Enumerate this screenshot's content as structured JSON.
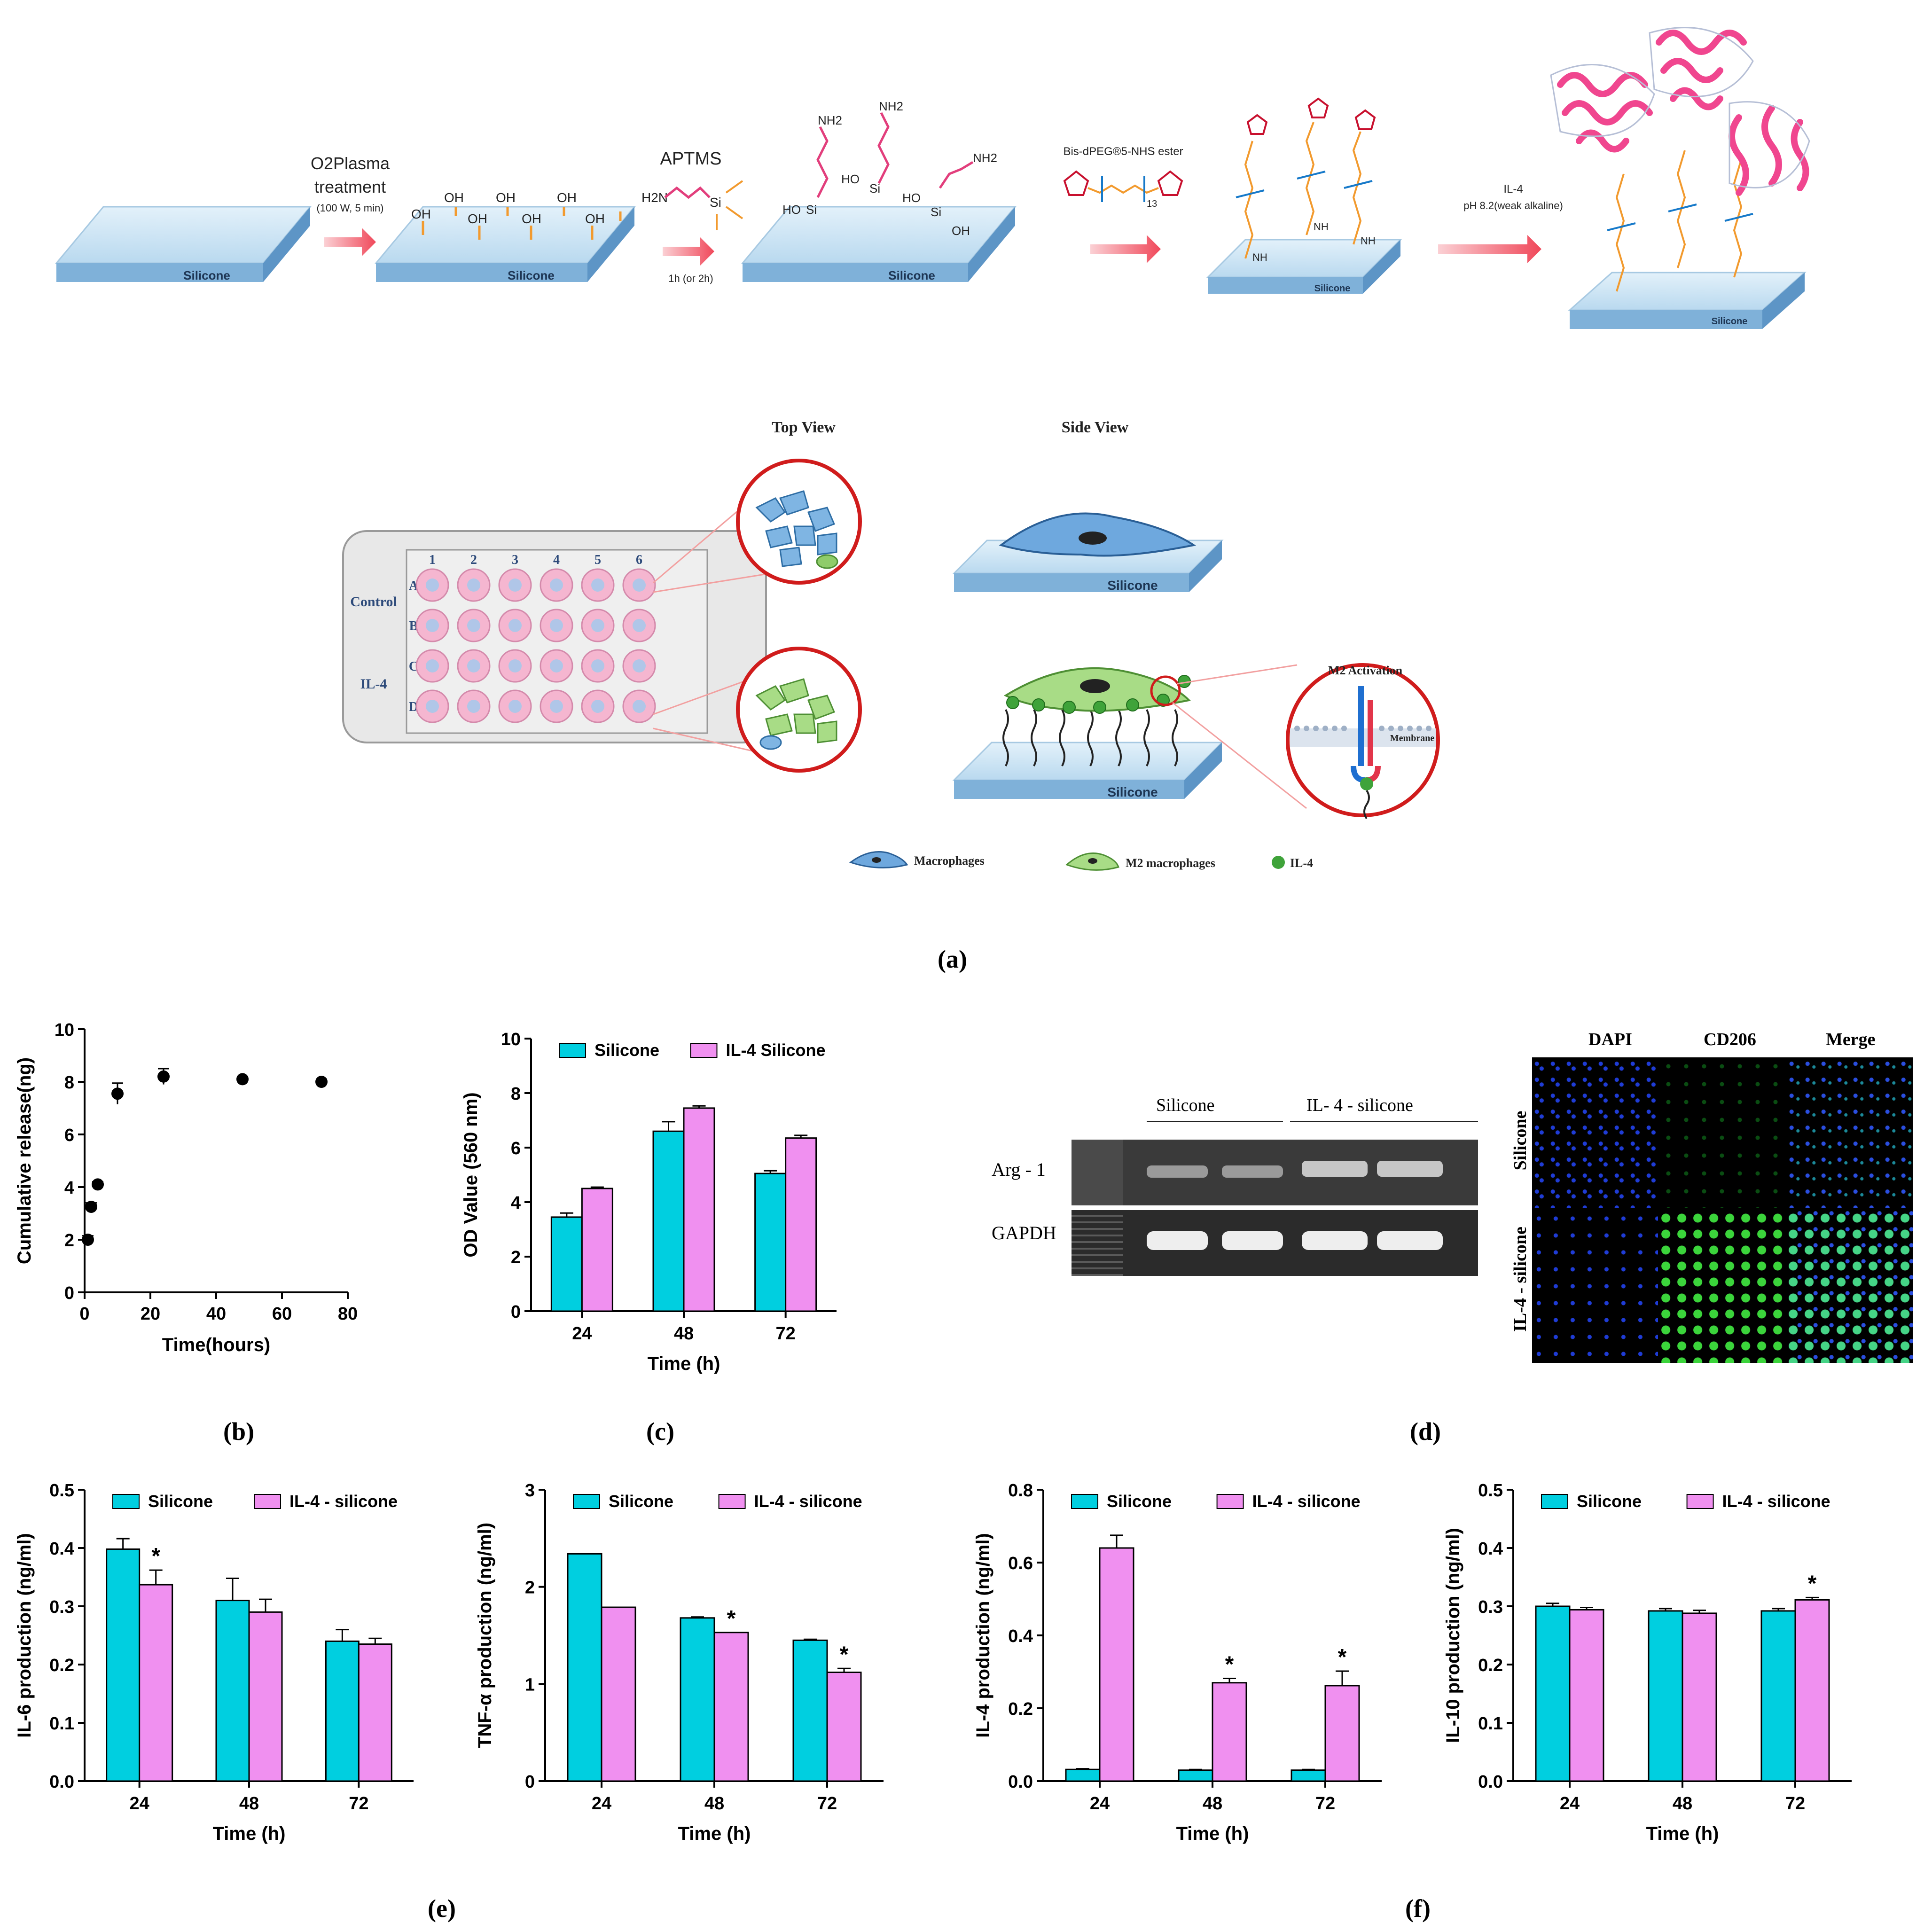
{
  "scheme": {
    "slab1_label": "Silicone",
    "step1": {
      "title_line1": "O2Plasma",
      "title_line2": "treatment",
      "detail": "(100 W, 5 min)"
    },
    "slab2_label": "Silicone",
    "oh_labels": [
      "OH",
      "OH",
      "OH",
      "OH",
      "OH",
      "OH",
      "OH",
      "OH"
    ],
    "step2": {
      "title": "APTMS",
      "detail": "1h (or 2h)"
    },
    "aptms_molecule": {
      "amine": "H2N",
      "si": "Si"
    },
    "slab3_label": "Silicone",
    "amine_labels": [
      "NH2",
      "NH2",
      "NH2"
    ],
    "si_labels": [
      "Si",
      "Si",
      "Si"
    ],
    "ho_labels": [
      "HO",
      "HO",
      "HO",
      "OH"
    ],
    "step3": {
      "title": "Bis-dPEG®5-NHS ester",
      "repeat": "13"
    },
    "slab4_label": "Silicone",
    "nh_labels": [
      "NH",
      "NH",
      "NH"
    ],
    "step4": {
      "title": "IL-4",
      "detail": "pH 8.2(weak alkaline)"
    },
    "slab5_label": "Silicone"
  },
  "schematic": {
    "top_view_label": "Top View",
    "side_view_label": "Side View",
    "plate": {
      "columns": [
        "1",
        "2",
        "3",
        "4",
        "5",
        "6"
      ],
      "rows": [
        "A",
        "B",
        "C",
        "D"
      ],
      "group_control": "Control",
      "group_il4": "IL-4"
    },
    "side_slab1_label": "Silicone",
    "side_slab2_label": "Silicone",
    "m2_activation_label": "M2 Activation",
    "membrane_label": "Membrane",
    "legend": {
      "macrophages": "Macrophages",
      "m2_macrophages": "M2 macrophages",
      "il4": "IL-4"
    }
  },
  "panel_labels": {
    "a": "(a)",
    "b": "(b)",
    "c": "(c)",
    "d": "(d)",
    "e": "(e)",
    "f": "(f)"
  },
  "gel": {
    "group_silicone": "Silicone",
    "group_il4": "IL- 4 - silicone",
    "row_arg1": "Arg - 1",
    "row_gapdh": "GAPDH"
  },
  "microscopy": {
    "columns": [
      "DAPI",
      "CD206",
      "Merge"
    ],
    "rows": [
      "Silicone",
      "IL-4 - silicone"
    ]
  },
  "colors": {
    "silicone": "#00cfe0",
    "il4_silicone": "#f090f0",
    "slab_top": "#c7e3f3",
    "arrow": "#f0485a",
    "linker_orange": "#f29a2e",
    "linker_blue": "#1679c9",
    "protein_pink": "#f0468f",
    "m2_green": "#8fcc6a"
  },
  "chart_data": [
    {
      "id": "b",
      "type": "scatter",
      "title": "",
      "xlabel": "Time(hours)",
      "ylabel": "Cumulative release(ng)",
      "xlim": [
        0,
        80
      ],
      "ylim": [
        0,
        10
      ],
      "xticks": [
        "0",
        "20",
        "40",
        "60",
        "80"
      ],
      "yticks": [
        "0",
        "2",
        "4",
        "6",
        "8",
        "10"
      ],
      "x": [
        1,
        2,
        4,
        10,
        24,
        48,
        72
      ],
      "y": [
        2.0,
        3.25,
        4.1,
        7.55,
        8.2,
        8.1,
        8.0
      ],
      "err": [
        0.15,
        0.15,
        0.1,
        0.4,
        0.3,
        0.1,
        0.1
      ],
      "grid": false
    },
    {
      "id": "c",
      "type": "bar",
      "title": "",
      "xlabel": "Time (h)",
      "ylabel": "OD Value (560 nm)",
      "ylim": [
        0,
        10
      ],
      "yticks": [
        "0",
        "2",
        "4",
        "6",
        "8",
        "10"
      ],
      "categories": [
        "24",
        "48",
        "72"
      ],
      "series": [
        {
          "name": "Silicone",
          "values": [
            3.45,
            6.6,
            5.05
          ],
          "err": [
            0.15,
            0.35,
            0.1
          ]
        },
        {
          "name": "IL-4 Silicone",
          "values": [
            4.5,
            7.45,
            6.35
          ],
          "err": [
            0.05,
            0.08,
            0.1
          ]
        }
      ],
      "stars": [],
      "legend": "top"
    },
    {
      "id": "e1",
      "type": "bar",
      "title": "",
      "xlabel": "Time (h)",
      "ylabel": "IL-6 production (ng/ml)",
      "ylim": [
        0,
        0.5
      ],
      "yticks": [
        "0.0",
        "0.1",
        "0.2",
        "0.3",
        "0.4",
        "0.5"
      ],
      "categories": [
        "24",
        "48",
        "72"
      ],
      "series": [
        {
          "name": "Silicone",
          "values": [
            0.398,
            0.31,
            0.24
          ],
          "err": [
            0.018,
            0.038,
            0.02
          ]
        },
        {
          "name": "IL-4 - silicone",
          "values": [
            0.337,
            0.29,
            0.235
          ],
          "err": [
            0.025,
            0.022,
            0.01
          ]
        }
      ],
      "stars": [
        {
          "category": 0,
          "series": 1,
          "label": "*"
        }
      ],
      "legend": "top"
    },
    {
      "id": "e2",
      "type": "bar",
      "title": "",
      "xlabel": "Time (h)",
      "ylabel": "TNF-α production (ng/ml)",
      "ylim": [
        0,
        3
      ],
      "yticks": [
        "0",
        "1",
        "2",
        "3"
      ],
      "categories": [
        "24",
        "48",
        "72"
      ],
      "series": [
        {
          "name": "Silicone",
          "values": [
            2.34,
            1.68,
            1.45
          ],
          "err": [
            0,
            0.01,
            0.01
          ]
        },
        {
          "name": "IL-4 - silicone",
          "values": [
            1.79,
            1.53,
            1.12
          ],
          "err": [
            0,
            0,
            0.04
          ]
        }
      ],
      "stars": [
        {
          "category": 1,
          "series": 1,
          "label": "*"
        },
        {
          "category": 2,
          "series": 1,
          "label": "*"
        }
      ],
      "legend": "top"
    },
    {
      "id": "f1",
      "type": "bar",
      "title": "",
      "xlabel": "Time (h)",
      "ylabel": "IL-4 production (ng/ml)",
      "ylim": [
        0,
        0.8
      ],
      "yticks": [
        "0.0",
        "0.2",
        "0.4",
        "0.6",
        "0.8"
      ],
      "categories": [
        "24",
        "48",
        "72"
      ],
      "series": [
        {
          "name": "Silicone",
          "values": [
            0.032,
            0.03,
            0.03
          ],
          "err": [
            0.002,
            0.002,
            0.002
          ]
        },
        {
          "name": "IL-4 - silicone",
          "values": [
            0.64,
            0.27,
            0.262
          ],
          "err": [
            0.035,
            0.012,
            0.04
          ]
        }
      ],
      "stars": [
        {
          "category": 1,
          "series": 1,
          "label": "*"
        },
        {
          "category": 2,
          "series": 1,
          "label": "*"
        }
      ],
      "legend": "top"
    },
    {
      "id": "f2",
      "type": "bar",
      "title": "",
      "xlabel": "Time (h)",
      "ylabel": "IL-10 production (ng/ml)",
      "ylim": [
        0,
        0.5
      ],
      "yticks": [
        "0.0",
        "0.1",
        "0.2",
        "0.3",
        "0.4",
        "0.5"
      ],
      "categories": [
        "24",
        "48",
        "72"
      ],
      "series": [
        {
          "name": "Silicone",
          "values": [
            0.3,
            0.292,
            0.292
          ],
          "err": [
            0.005,
            0.004,
            0.004
          ]
        },
        {
          "name": "IL-4 - silicone",
          "values": [
            0.294,
            0.288,
            0.311
          ],
          "err": [
            0.004,
            0.005,
            0.004
          ]
        }
      ],
      "stars": [
        {
          "category": 2,
          "series": 1,
          "label": "*"
        }
      ],
      "legend": "top"
    }
  ]
}
